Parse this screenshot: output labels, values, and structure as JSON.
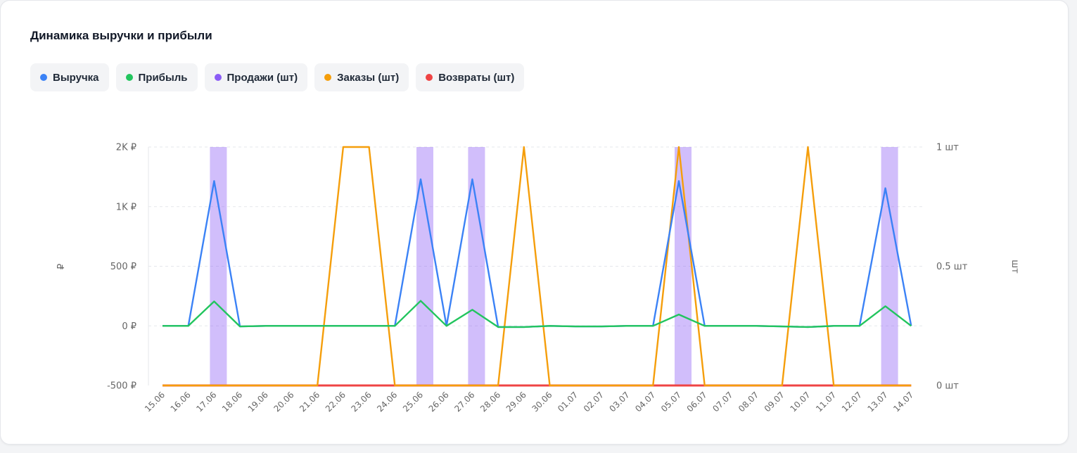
{
  "card": {
    "title": "Динамика выручки и прибыли"
  },
  "legend": [
    {
      "label": "Выручка",
      "color": "#3b82f6"
    },
    {
      "label": "Прибыль",
      "color": "#22c55e"
    },
    {
      "label": "Продажи (шт)",
      "color": "#8b5cf6"
    },
    {
      "label": "Заказы (шт)",
      "color": "#f59e0b"
    },
    {
      "label": "Возвраты (шт)",
      "color": "#ef4444"
    }
  ],
  "chart_data": {
    "type": "line",
    "x": [
      "15.06",
      "16.06",
      "17.06",
      "18.06",
      "19.06",
      "20.06",
      "21.06",
      "22.06",
      "23.06",
      "24.06",
      "25.06",
      "26.06",
      "27.06",
      "28.06",
      "29.06",
      "30.06",
      "01.07",
      "02.07",
      "03.07",
      "04.07",
      "05.07",
      "06.07",
      "07.07",
      "08.07",
      "09.07",
      "10.07",
      "11.07",
      "12.07",
      "13.07",
      "14.07"
    ],
    "y_left": {
      "label": "₽",
      "ticks": [
        "2K ₽",
        "1K ₽",
        "500 ₽",
        "0 ₽",
        "-500 ₽"
      ],
      "tick_values": [
        1500,
        1000,
        500,
        0,
        -500
      ],
      "range": [
        -500,
        1500
      ]
    },
    "y_right": {
      "label": "шт",
      "ticks": [
        "1 шт",
        "0.5 шт",
        "0 шт"
      ],
      "tick_values": [
        1,
        0.5,
        0
      ],
      "range": [
        0,
        1
      ]
    },
    "grid": true,
    "series": [
      {
        "name": "Выручка",
        "axis": "left",
        "color": "#3b82f6",
        "kind": "line",
        "values": [
          0,
          0,
          1215,
          -5,
          0,
          0,
          0,
          0,
          0,
          0,
          1230,
          0,
          1230,
          -10,
          -10,
          0,
          -5,
          -5,
          0,
          0,
          1215,
          0,
          0,
          0,
          -5,
          -10,
          0,
          0,
          1155,
          0
        ]
      },
      {
        "name": "Прибыль",
        "axis": "left",
        "color": "#22c55e",
        "kind": "line",
        "values": [
          0,
          0,
          205,
          -5,
          0,
          0,
          0,
          0,
          0,
          0,
          210,
          0,
          135,
          -10,
          -10,
          0,
          -5,
          -5,
          0,
          0,
          95,
          0,
          0,
          0,
          -5,
          -10,
          0,
          0,
          165,
          0
        ]
      },
      {
        "name": "Продажи (шт)",
        "axis": "right",
        "color": "#8b5cf6",
        "kind": "bar",
        "values": [
          0,
          0,
          1,
          0,
          0,
          0,
          0,
          0,
          0,
          0,
          1,
          0,
          1,
          0,
          0,
          0,
          0,
          0,
          0,
          0,
          1,
          0,
          0,
          0,
          0,
          0,
          0,
          0,
          1,
          0
        ]
      },
      {
        "name": "Заказы (шт)",
        "axis": "right",
        "color": "#f59e0b",
        "kind": "line",
        "values": [
          0,
          0,
          0,
          0,
          0,
          0,
          0,
          1,
          1,
          0,
          0,
          0,
          0,
          0,
          1,
          0,
          0,
          0,
          0,
          0,
          1,
          0,
          0,
          0,
          0,
          1,
          0,
          0,
          0,
          0
        ]
      },
      {
        "name": "Возвраты (шт)",
        "axis": "right",
        "color": "#ef4444",
        "kind": "line",
        "values": [
          0,
          0,
          0,
          0,
          0,
          0,
          0,
          0,
          0,
          0,
          0,
          0,
          0,
          0,
          0,
          0,
          0,
          0,
          0,
          0,
          0,
          0,
          0,
          0,
          0,
          0,
          0,
          0,
          0,
          0
        ]
      }
    ]
  }
}
